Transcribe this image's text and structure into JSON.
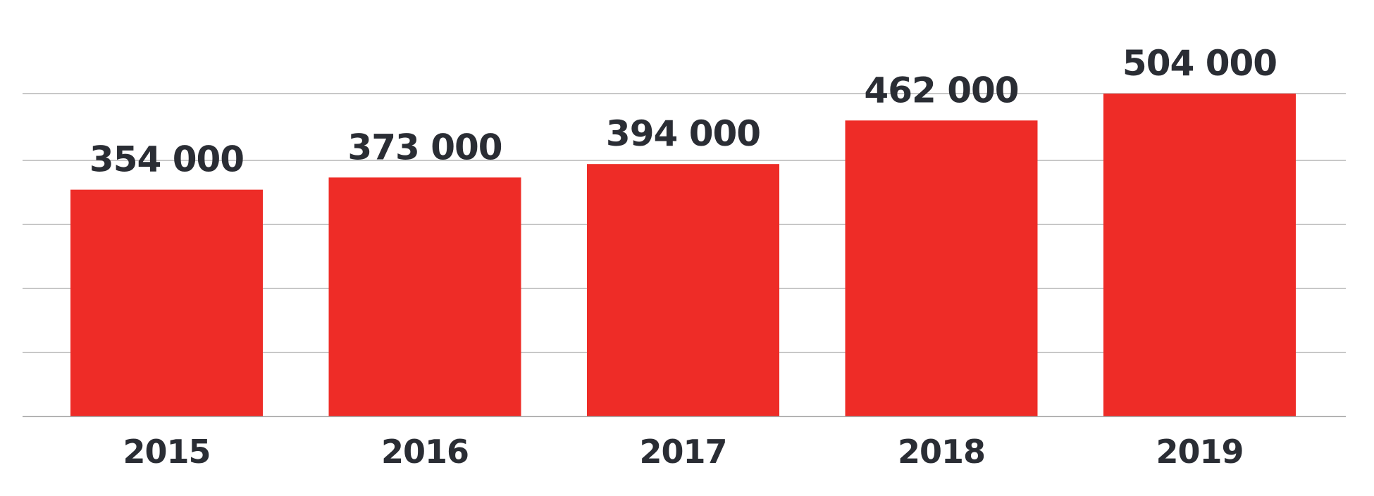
{
  "chart_data": {
    "type": "bar",
    "title": "",
    "xlabel": "",
    "ylabel": "",
    "categories": [
      "2015",
      "2016",
      "2017",
      "2018",
      "2019"
    ],
    "values": [
      354000,
      373000,
      394000,
      462000,
      504000
    ],
    "data_labels": [
      "354 000",
      "373 000",
      "394 000",
      "462 000",
      "504 000"
    ],
    "ylim": [
      0,
      504000
    ],
    "grid": true,
    "legend": "none",
    "colors": {
      "bar": "#ee2c27",
      "text": "#2a2d34",
      "grid": "#b5b5b5"
    }
  }
}
